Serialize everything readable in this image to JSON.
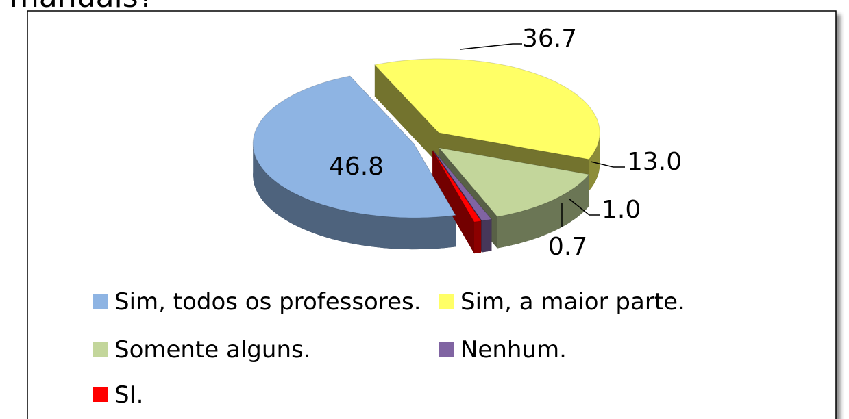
{
  "chart_data": {
    "type": "pie3d",
    "title": "manuais?",
    "categories": [
      "Sim, todos os professores.",
      "Sim, a maior parte.",
      "Somente alguns.",
      "Nenhum.",
      "SI."
    ],
    "values": [
      46.8,
      36.7,
      13.0,
      1.0,
      0.7
    ],
    "value_labels": [
      "46.8",
      "36.7",
      "13.0",
      "1.0",
      "0.7"
    ],
    "colors": [
      "#8eb4e3",
      "#ffff66",
      "#c3d69b",
      "#8064a2",
      "#ff0000"
    ],
    "legend": "bottom"
  }
}
